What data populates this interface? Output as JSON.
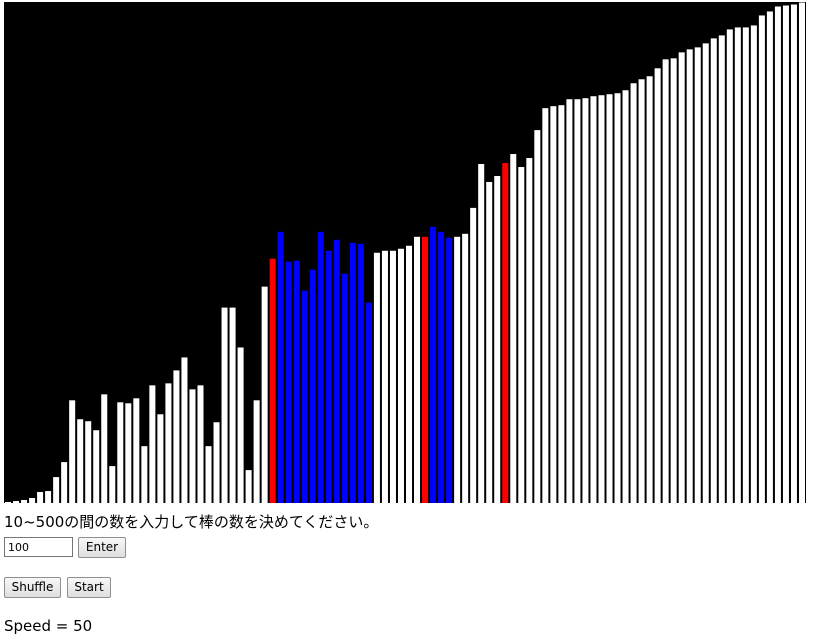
{
  "instruction_text": "10~500の間の数を入力して棒の数を決めてください。",
  "count_input": {
    "value": "100"
  },
  "buttons": {
    "enter_label": "Enter",
    "shuffle_label": "Shuffle",
    "start_label": "Start"
  },
  "speed_text": "Speed = 50",
  "colors": {
    "background": "#000000",
    "bar_default": "#ffffff",
    "bar_compare": "#ff0000",
    "bar_partition": "#0000ff"
  },
  "chart_data": {
    "type": "bar",
    "ylim": [
      0,
      500
    ],
    "values": [
      1,
      2,
      3,
      5,
      11,
      12,
      26,
      41,
      103,
      84,
      82,
      73,
      109,
      37,
      101,
      100,
      105,
      57,
      118,
      89,
      120,
      133,
      146,
      114,
      118,
      57,
      81,
      196,
      196,
      156,
      33,
      103,
      217,
      245,
      272,
      242,
      243,
      213,
      234,
      272,
      253,
      264,
      230,
      261,
      260,
      201,
      251,
      253,
      253,
      255,
      258,
      267,
      267,
      277,
      272,
      266,
      267,
      270,
      296,
      340,
      322,
      328,
      341,
      350,
      337,
      346,
      374,
      396,
      398,
      399,
      405,
      405,
      406,
      408,
      409,
      410,
      411,
      414,
      421,
      425,
      428,
      436,
      445,
      446,
      452,
      455,
      457,
      461,
      466,
      469,
      475,
      477,
      477,
      479,
      489,
      493,
      498,
      499,
      500,
      502
    ],
    "highlight_red": [
      33,
      52,
      62
    ],
    "highlight_blue": [
      34,
      35,
      36,
      37,
      38,
      39,
      40,
      41,
      42,
      43,
      44,
      45,
      53,
      54,
      55
    ]
  }
}
